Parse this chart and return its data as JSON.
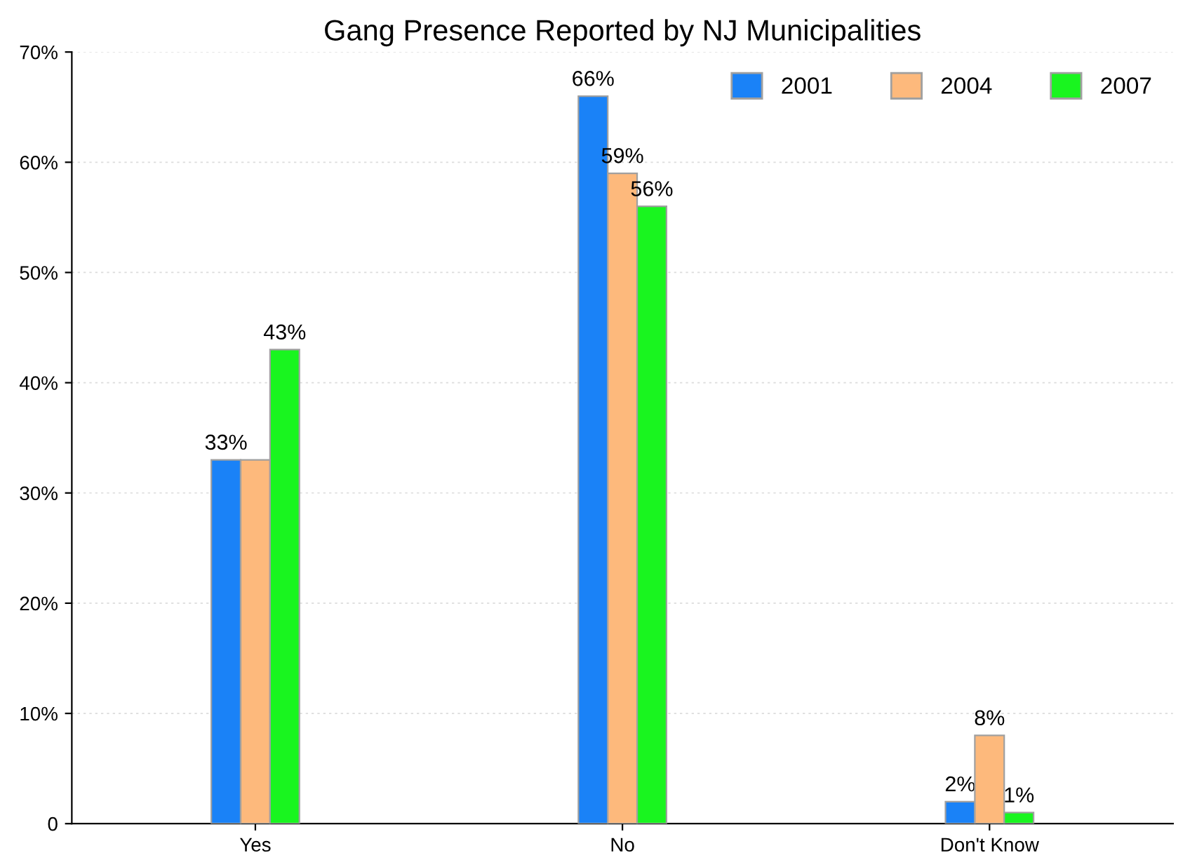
{
  "chart_data": {
    "type": "bar",
    "title": "Gang Presence Reported by NJ Municipalities",
    "categories": [
      "Yes",
      "No",
      "Don't Know"
    ],
    "series": [
      {
        "name": "2001",
        "color": "#1a82f7",
        "values": [
          33,
          66,
          2
        ],
        "value_labels": [
          "33%",
          "66%",
          "2%"
        ]
      },
      {
        "name": "2004",
        "color": "#fdb97c",
        "values": [
          33,
          59,
          8
        ],
        "value_labels": [
          null,
          "59%",
          "8%"
        ]
      },
      {
        "name": "2007",
        "color": "#19f51f",
        "values": [
          43,
          56,
          1
        ],
        "value_labels": [
          "43%",
          "56%",
          "1%"
        ]
      }
    ],
    "ylim": [
      0,
      70
    ],
    "yticks": [
      0,
      {
        "value": 10,
        "label": "10%"
      },
      {
        "value": 20,
        "label": "20%"
      },
      {
        "value": 30,
        "label": "30%"
      },
      {
        "value": 40,
        "label": "40%"
      },
      {
        "value": 50,
        "label": "50%"
      },
      {
        "value": 60,
        "label": "60%"
      },
      {
        "value": 70,
        "label": "70%"
      }
    ],
    "grid": "y",
    "legend": "top right"
  }
}
